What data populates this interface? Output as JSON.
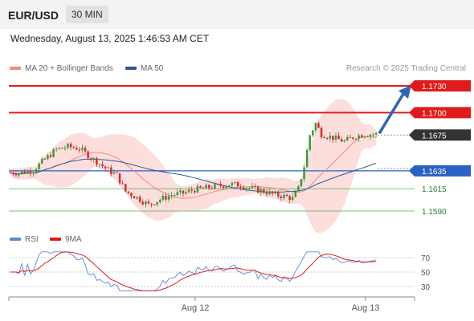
{
  "header": {
    "symbol": "EUR/USD",
    "timeframe": "30 MIN",
    "datetime": "Wednesday, August 13, 2025 1:46:53 AM CET"
  },
  "legend_main": [
    {
      "label": "MA 20 + Bollinger Bands",
      "color": "#f08a86"
    },
    {
      "label": "MA 50",
      "color": "#2d5796"
    }
  ],
  "credit": "Research © 2025 Trading Central",
  "legend_rsi": [
    {
      "label": "RSI",
      "color": "#5b8ad6"
    },
    {
      "label": "9MA",
      "color": "#e01b1b"
    }
  ],
  "colors": {
    "resistance": "#e01b1b",
    "support_line": "#4caf50",
    "pivot": "#2962c4",
    "current": "#333333",
    "candle_up": "#3a9a3a",
    "candle_down": "#d12f2f",
    "band_fill": "#fbd3d1",
    "arrow": "#2d65b5"
  },
  "chart_data": [
    {
      "type": "candlestick",
      "series": [
        {
          "name": "MA 20 + Bollinger Bands"
        },
        {
          "name": "MA 50"
        }
      ],
      "x_ticks": [
        "Aug 12",
        "Aug 13"
      ],
      "levels": [
        {
          "value": 1.173,
          "label": "1.1730",
          "kind": "resistance"
        },
        {
          "value": 1.17,
          "label": "1.1700",
          "kind": "resistance"
        },
        {
          "value": 1.1675,
          "label": "1.1675",
          "kind": "current"
        },
        {
          "value": 1.1635,
          "label": "1.1635",
          "kind": "pivot"
        },
        {
          "value": 1.1615,
          "label": "1.1615",
          "kind": "support"
        },
        {
          "value": 1.159,
          "label": "1.1590",
          "kind": "support"
        }
      ],
      "projection": {
        "from": 1.1675,
        "to": 1.173,
        "direction": "up"
      }
    },
    {
      "type": "line",
      "series": [
        {
          "name": "RSI"
        },
        {
          "name": "9MA"
        }
      ],
      "ylim": [
        20,
        80
      ],
      "y_ticks": [
        70,
        50,
        30
      ],
      "rsi_current": 64
    }
  ]
}
